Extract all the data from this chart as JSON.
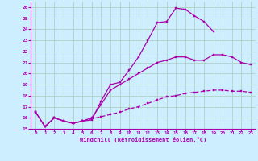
{
  "xlabel": "Windchill (Refroidissement éolien,°C)",
  "bg_color": "#cceeff",
  "grid_color": "#aaccbb",
  "line_color": "#aa00aa",
  "xlim": [
    -0.5,
    23.5
  ],
  "ylim": [
    15,
    26.5
  ],
  "xticks": [
    0,
    1,
    2,
    3,
    4,
    5,
    6,
    7,
    8,
    9,
    10,
    11,
    12,
    13,
    14,
    15,
    16,
    17,
    18,
    19,
    20,
    21,
    22,
    23
  ],
  "yticks": [
    15,
    16,
    17,
    18,
    19,
    20,
    21,
    22,
    23,
    24,
    25,
    26
  ],
  "curve1_x": [
    0,
    1,
    2,
    3,
    4,
    5,
    6,
    7,
    8,
    9,
    10,
    11,
    12,
    13,
    14,
    15,
    16,
    17,
    18,
    19,
    20,
    21,
    22,
    23
  ],
  "curve1_y": [
    16.5,
    15.2,
    16.0,
    15.7,
    15.5,
    15.7,
    15.8,
    17.5,
    19.0,
    19.2,
    20.3,
    21.5,
    23.0,
    24.6,
    24.7,
    25.9,
    25.8,
    25.2,
    24.7,
    23.8,
    null,
    null,
    null,
    null
  ],
  "curve2_x": [
    0,
    1,
    2,
    3,
    4,
    5,
    6,
    7,
    8,
    9,
    10,
    11,
    12,
    13,
    14,
    15,
    16,
    17,
    18,
    19,
    20,
    21,
    22,
    23
  ],
  "curve2_y": [
    16.5,
    15.2,
    16.0,
    15.7,
    15.5,
    15.7,
    16.0,
    17.2,
    18.5,
    19.0,
    19.5,
    20.0,
    20.5,
    21.0,
    21.2,
    21.5,
    21.5,
    21.2,
    21.2,
    21.7,
    21.7,
    21.5,
    21.0,
    20.8
  ],
  "curve3_x": [
    0,
    1,
    2,
    3,
    4,
    5,
    6,
    7,
    8,
    9,
    10,
    11,
    12,
    13,
    14,
    15,
    16,
    17,
    18,
    19,
    20,
    21,
    22,
    23
  ],
  "curve3_y": [
    16.5,
    15.2,
    16.0,
    15.7,
    15.5,
    15.7,
    15.9,
    16.1,
    16.3,
    16.5,
    16.8,
    17.0,
    17.3,
    17.6,
    17.9,
    18.0,
    18.2,
    18.3,
    18.4,
    18.5,
    18.5,
    18.4,
    18.4,
    18.3
  ]
}
